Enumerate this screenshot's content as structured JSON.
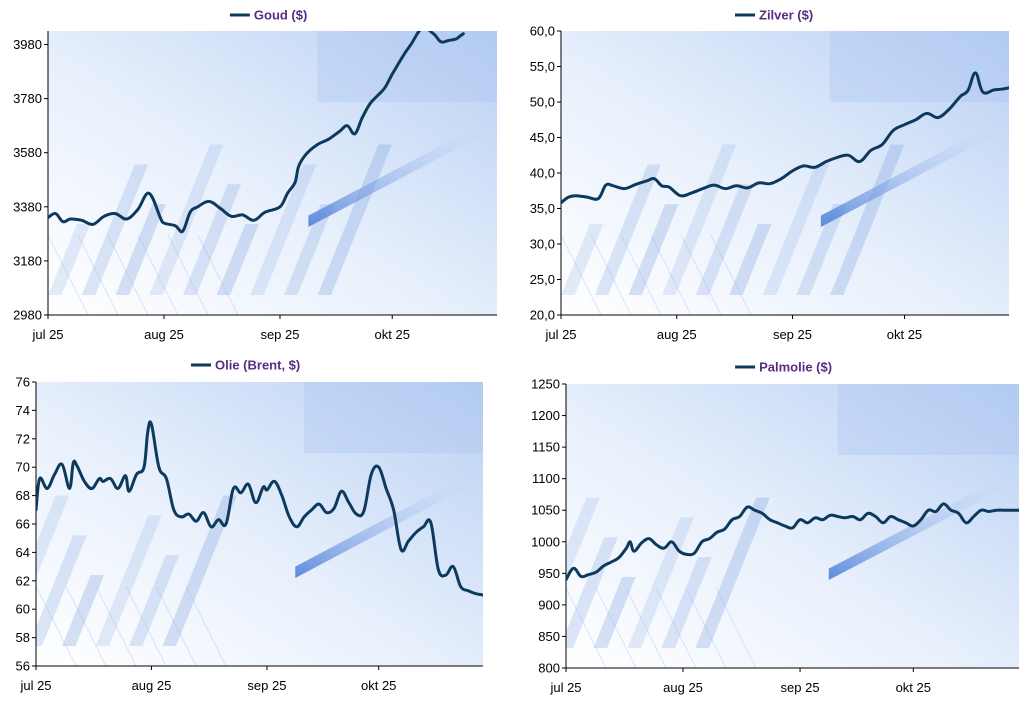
{
  "colors": {
    "series_line": "#0d3a5c",
    "legend_text": "#5b2c83",
    "axis": "#000000",
    "background": "#ffffff",
    "plot_bg_light": "#ffffff",
    "plot_bg_blue": "#bcd3f5"
  },
  "chart_data": [
    {
      "type": "line",
      "title": "Goud ($)",
      "legend": "Goud ($)",
      "legend_position": "top-center",
      "ylim": [
        2980,
        4030
      ],
      "yticks": [
        2980,
        3180,
        3380,
        3580,
        3780,
        3980
      ],
      "ytick_labels": [
        "2980",
        "3180",
        "3380",
        "3580",
        "3780",
        "3980"
      ],
      "xlim": [
        0,
        120
      ],
      "x_ticks": [
        0,
        31,
        62,
        92
      ],
      "x_tick_labels": [
        "jul 25",
        "aug 25",
        "sep 25",
        "okt 25"
      ],
      "series": [
        {
          "name": "Goud ($)",
          "x": [
            0,
            2,
            4,
            6,
            9,
            12,
            15,
            18,
            21,
            24,
            27,
            30,
            31,
            34,
            36,
            38,
            40,
            43,
            46,
            49,
            52,
            55,
            58,
            62,
            64,
            66,
            67,
            69,
            72,
            75,
            78,
            80,
            82,
            84,
            86,
            88,
            90,
            92,
            95,
            97,
            100,
            103,
            105,
            107,
            109,
            110,
            111
          ],
          "values": [
            3340,
            3355,
            3325,
            3335,
            3330,
            3315,
            3345,
            3355,
            3335,
            3370,
            3430,
            3340,
            3320,
            3310,
            3290,
            3360,
            3380,
            3400,
            3375,
            3345,
            3350,
            3330,
            3360,
            3380,
            3430,
            3470,
            3530,
            3575,
            3610,
            3630,
            3660,
            3680,
            3650,
            3710,
            3760,
            3790,
            3820,
            3870,
            3940,
            3980,
            4040,
            4020,
            3990,
            3995,
            4000,
            4010,
            4020
          ]
        }
      ]
    },
    {
      "type": "line",
      "title": "Zilver ($)",
      "legend": "Zilver ($)",
      "legend_position": "top-center",
      "ylim": [
        20,
        60
      ],
      "yticks": [
        20,
        25,
        30,
        35,
        40,
        45,
        50,
        55,
        60
      ],
      "ytick_labels": [
        "20,0",
        "25,0",
        "30,0",
        "35,0",
        "40,0",
        "45,0",
        "50,0",
        "55,0",
        "60,0"
      ],
      "xlim": [
        0,
        120
      ],
      "x_ticks": [
        0,
        31,
        62,
        92
      ],
      "x_tick_labels": [
        "jul 25",
        "aug 25",
        "sep 25",
        "okt 25"
      ],
      "series": [
        {
          "name": "Zilver ($)",
          "x": [
            0,
            2,
            4,
            7,
            10,
            12,
            14,
            17,
            20,
            23,
            25,
            27,
            29,
            32,
            35,
            38,
            41,
            44,
            47,
            50,
            53,
            56,
            59,
            62,
            65,
            68,
            71,
            74,
            77,
            80,
            83,
            86,
            89,
            92,
            95,
            98,
            101,
            104,
            107,
            109,
            111,
            113,
            116,
            118,
            120
          ],
          "values": [
            35.8,
            36.6,
            36.8,
            36.6,
            36.4,
            38.3,
            38.2,
            37.8,
            38.4,
            38.9,
            39.2,
            38.2,
            38.0,
            36.8,
            37.2,
            37.8,
            38.3,
            37.8,
            38.2,
            37.9,
            38.6,
            38.5,
            39.2,
            40.3,
            41.0,
            40.8,
            41.6,
            42.2,
            42.5,
            41.6,
            43.2,
            44.0,
            46.0,
            46.8,
            47.5,
            48.4,
            47.8,
            49.0,
            50.8,
            51.6,
            54.1,
            51.4,
            51.7,
            51.8,
            52.0
          ]
        }
      ]
    },
    {
      "type": "line",
      "title": "Olie (Brent, $)",
      "legend": "Olie (Brent, $)",
      "legend_position": "top-center",
      "ylim": [
        56,
        76
      ],
      "yticks": [
        56,
        58,
        60,
        62,
        64,
        66,
        68,
        70,
        72,
        74,
        76
      ],
      "ytick_labels": [
        "56",
        "58",
        "60",
        "62",
        "64",
        "66",
        "68",
        "70",
        "72",
        "74",
        "76"
      ],
      "xlim": [
        0,
        120
      ],
      "x_ticks": [
        0,
        31,
        62,
        92
      ],
      "x_tick_labels": [
        "jul 25",
        "aug 25",
        "sep 25",
        "okt 25"
      ],
      "series": [
        {
          "name": "Olie (Brent, $)",
          "x": [
            0,
            1,
            3,
            5,
            7,
            9,
            10,
            11,
            13,
            15,
            17,
            18,
            20,
            22,
            24,
            25,
            27,
            29,
            30,
            31,
            33,
            35,
            37,
            39,
            41,
            43,
            45,
            47,
            49,
            51,
            53,
            55,
            57,
            59,
            61,
            62,
            64,
            66,
            68,
            70,
            72,
            74,
            76,
            78,
            80,
            82,
            84,
            86,
            88,
            90,
            92,
            94,
            96,
            98,
            100,
            102,
            104,
            106,
            108,
            110,
            112,
            114,
            116,
            118,
            120
          ],
          "values": [
            67.0,
            69.2,
            68.5,
            69.5,
            70.2,
            68.5,
            70.3,
            70.1,
            69.0,
            68.5,
            69.2,
            69.0,
            69.2,
            68.5,
            69.4,
            68.3,
            69.5,
            70.0,
            72.5,
            73.0,
            70.0,
            69.2,
            67.0,
            66.5,
            66.7,
            66.2,
            66.8,
            65.8,
            66.3,
            66.0,
            68.5,
            68.2,
            68.8,
            67.5,
            68.6,
            68.4,
            69.0,
            68.0,
            66.5,
            65.8,
            66.5,
            67.0,
            67.4,
            66.8,
            67.1,
            68.3,
            67.5,
            66.7,
            66.9,
            69.5,
            70.0,
            68.5,
            67.0,
            64.2,
            64.8,
            65.4,
            65.8,
            66.1,
            62.8,
            62.4,
            63.0,
            61.6,
            61.3,
            61.1,
            61.0
          ]
        }
      ]
    },
    {
      "type": "line",
      "title": "Palmolie ($)",
      "legend": "Palmolie ($)",
      "legend_position": "top-center",
      "ylim": [
        800,
        1250
      ],
      "yticks": [
        800,
        850,
        900,
        950,
        1000,
        1050,
        1100,
        1150,
        1200,
        1250
      ],
      "ytick_labels": [
        "800",
        "850",
        "900",
        "950",
        "1000",
        "1050",
        "1100",
        "1150",
        "1200",
        "1250"
      ],
      "xlim": [
        0,
        120
      ],
      "x_ticks": [
        0,
        31,
        62,
        92
      ],
      "x_tick_labels": [
        "jul 25",
        "aug 25",
        "sep 25",
        "okt 25"
      ],
      "series": [
        {
          "name": "Palmolie ($)",
          "x": [
            0,
            2,
            4,
            6,
            8,
            10,
            12,
            14,
            16,
            17,
            18,
            20,
            22,
            24,
            26,
            28,
            30,
            32,
            34,
            36,
            38,
            40,
            42,
            44,
            46,
            48,
            50,
            52,
            54,
            56,
            58,
            60,
            62,
            64,
            66,
            68,
            70,
            72,
            74,
            76,
            78,
            80,
            82,
            84,
            86,
            88,
            90,
            92,
            94,
            96,
            98,
            100,
            102,
            104,
            106,
            108,
            110,
            112,
            114,
            116,
            118,
            120
          ],
          "values": [
            940,
            958,
            945,
            948,
            952,
            962,
            968,
            975,
            990,
            1000,
            985,
            998,
            1005,
            995,
            990,
            1000,
            985,
            980,
            982,
            1000,
            1005,
            1015,
            1020,
            1035,
            1040,
            1055,
            1050,
            1045,
            1035,
            1030,
            1025,
            1022,
            1035,
            1030,
            1038,
            1035,
            1042,
            1040,
            1038,
            1040,
            1035,
            1045,
            1040,
            1030,
            1040,
            1035,
            1030,
            1025,
            1035,
            1050,
            1048,
            1060,
            1050,
            1045,
            1030,
            1040,
            1050,
            1048,
            1050,
            1050,
            1050,
            1050
          ]
        }
      ]
    }
  ]
}
